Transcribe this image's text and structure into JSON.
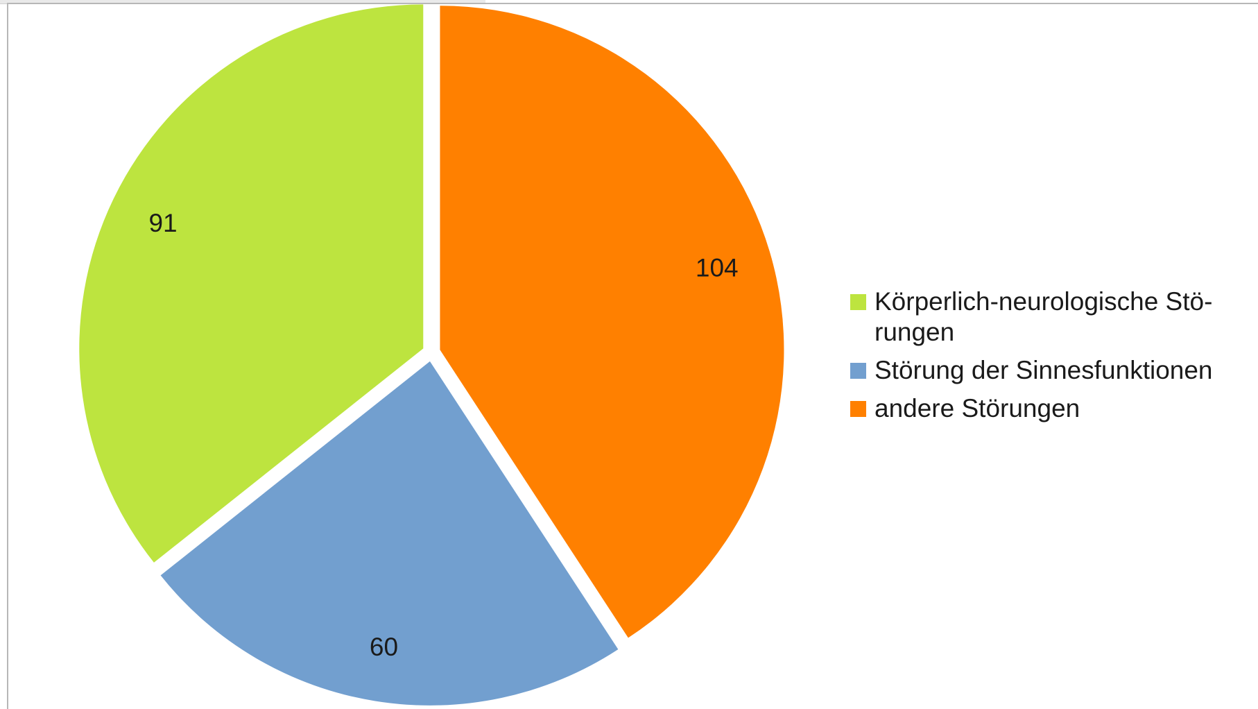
{
  "chart_data": {
    "type": "pie",
    "slices": [
      {
        "label": "andere Störungen",
        "value": 104,
        "color": "#ff8000"
      },
      {
        "label": "Störung der Sinnesfunktionen",
        "value": 60,
        "color": "#729fcf"
      },
      {
        "label": "Körperlich-neurologische Störungen",
        "value": 91,
        "color": "#bde43f"
      }
    ],
    "data_labels": [
      "104",
      "60",
      "91"
    ],
    "legend": {
      "placement": "right",
      "entries": [
        {
          "text": "Körperlich-neurologische Stö-\nrungen",
          "color": "#bde43f"
        },
        {
          "text": "Störung der Sinnesfunktionen",
          "color": "#729fcf"
        },
        {
          "text": "andere Störungen",
          "color": "#ff8000"
        }
      ]
    },
    "start_angle": "12 o'clock",
    "direction": "clockwise",
    "exploded": true
  }
}
